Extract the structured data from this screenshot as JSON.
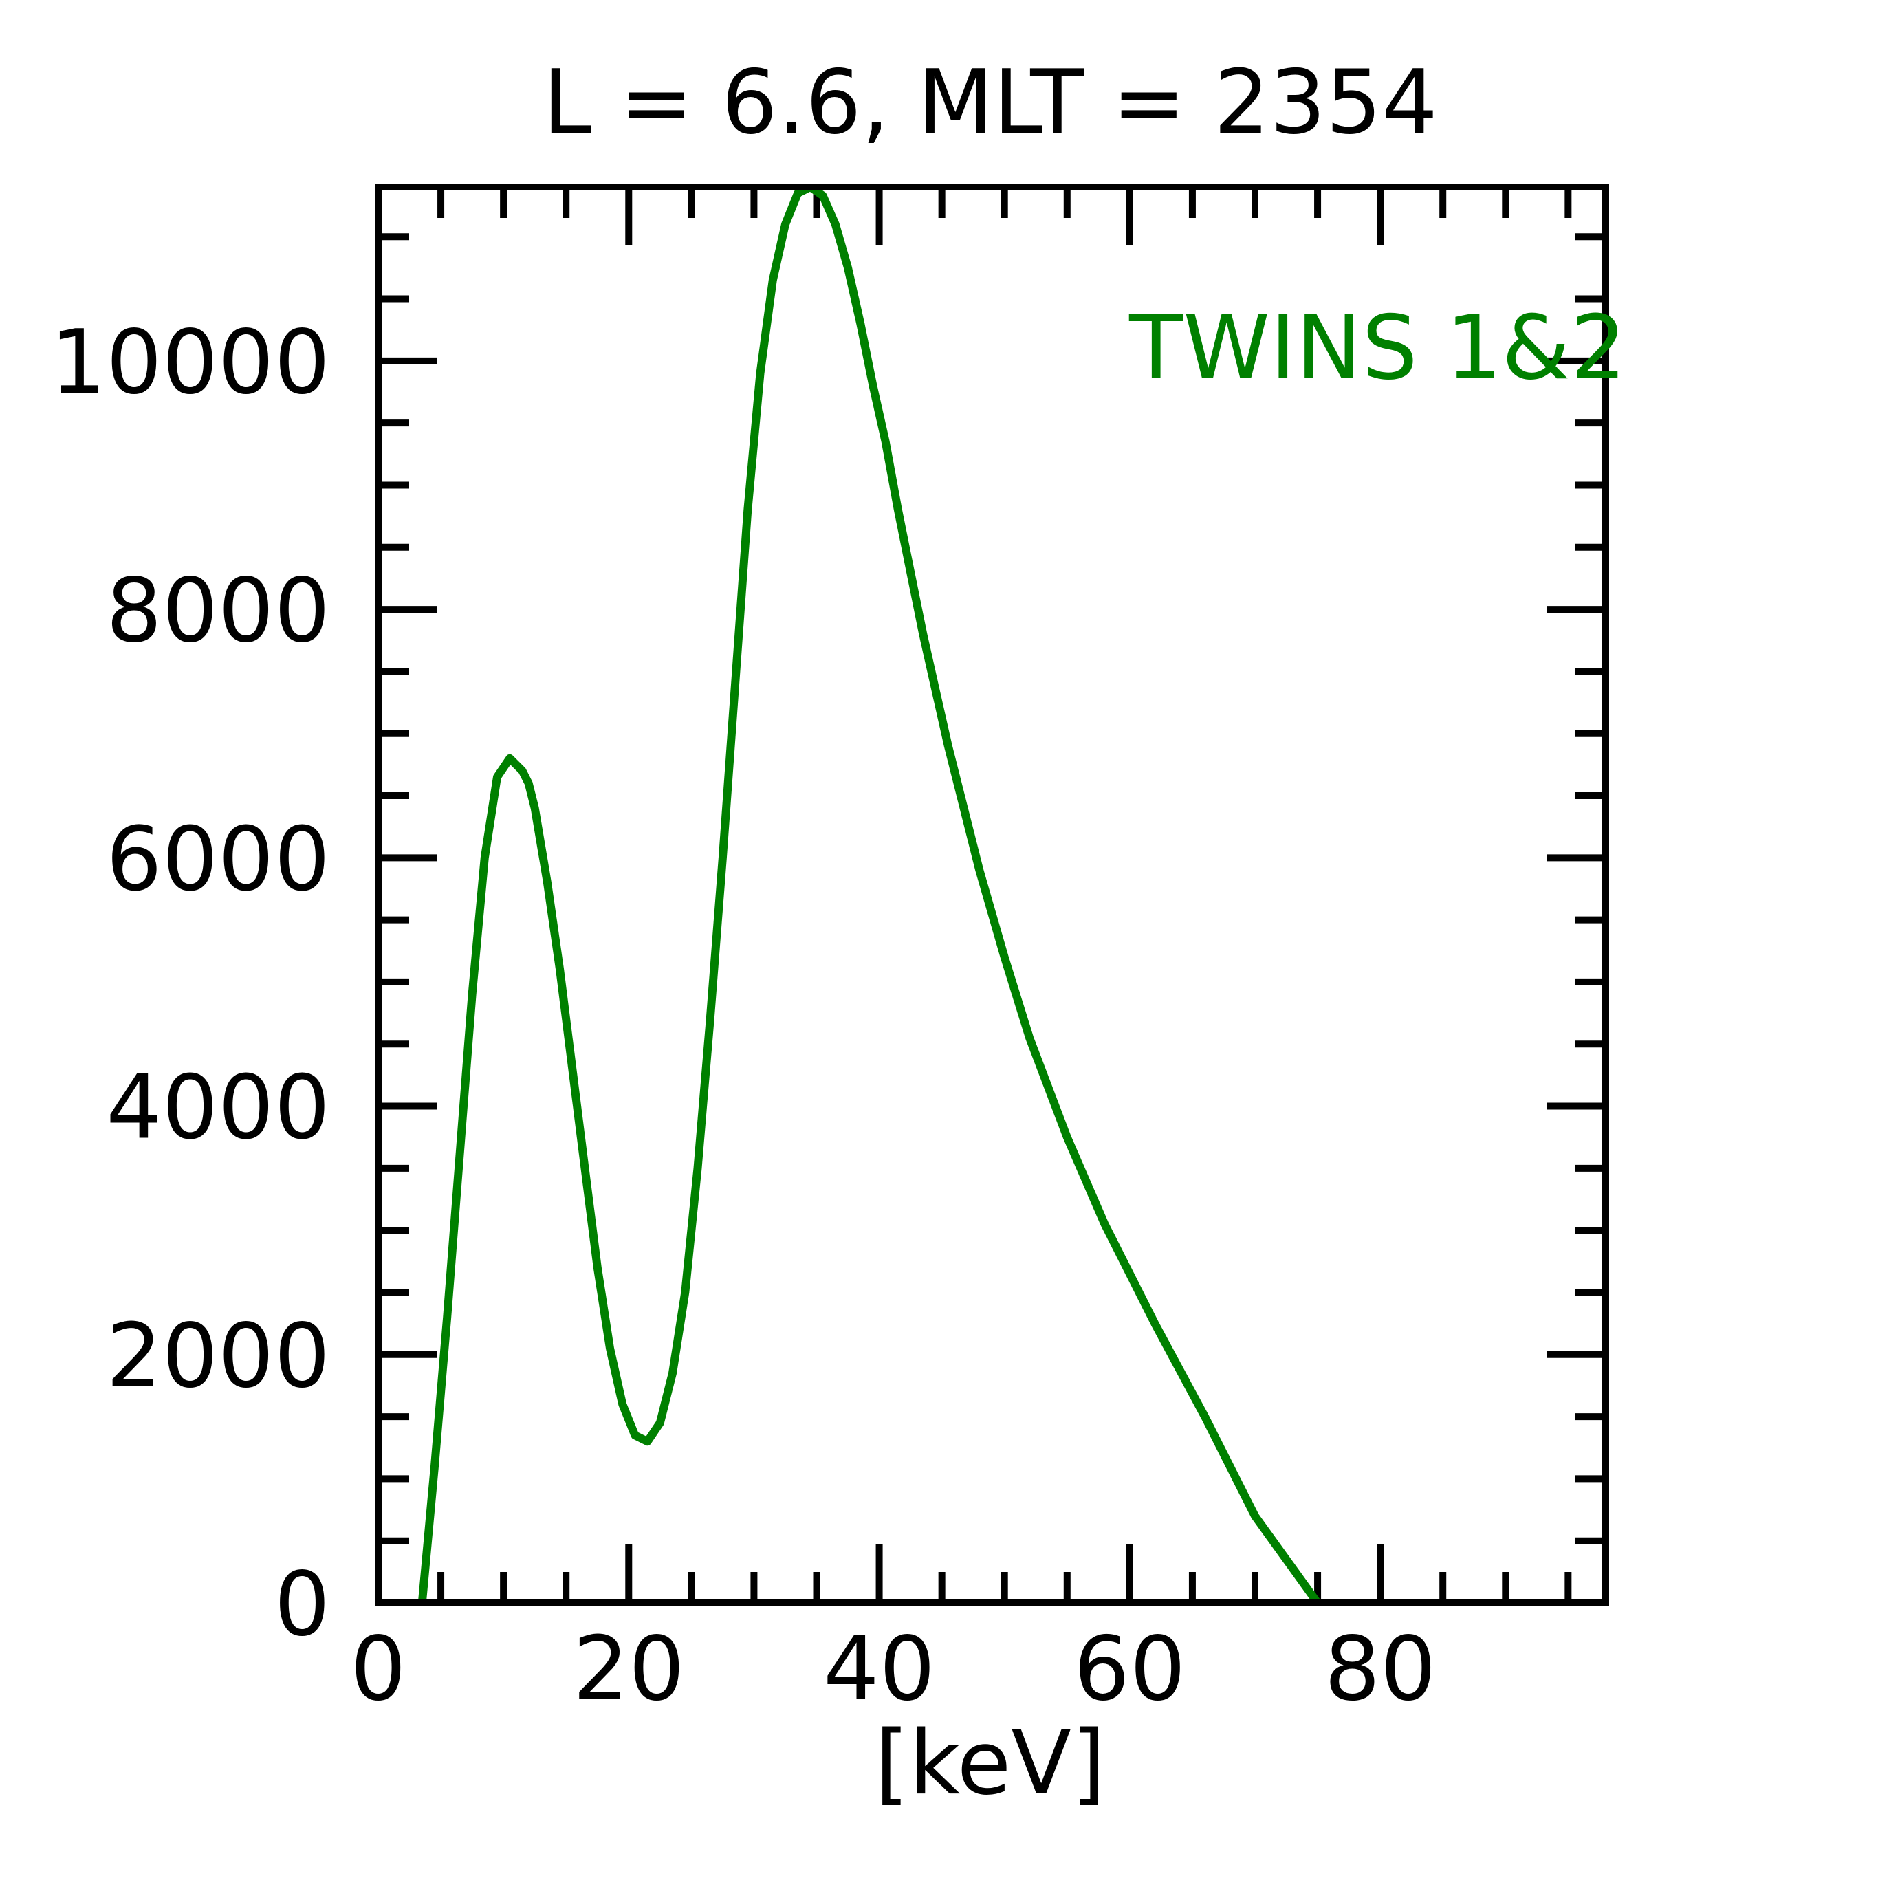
{
  "chart_data": {
    "type": "line",
    "title": "L =  6.6, MLT = 2354",
    "xlabel": "[keV]",
    "ylabel": "",
    "xlim": [
      0,
      98
    ],
    "ylim": [
      0,
      11400
    ],
    "x_ticks": [
      0,
      20,
      40,
      60,
      80
    ],
    "y_ticks": [
      0,
      2000,
      4000,
      6000,
      8000,
      10000
    ],
    "x_minor_step": 5,
    "y_minor_step": 500,
    "grid": false,
    "legend_position": "top-right",
    "series": [
      {
        "name": "TWINS 1&2",
        "color": "#008000",
        "x": [
          3.5,
          4.5,
          5.5,
          6.5,
          7.5,
          8.5,
          9.5,
          10.5,
          11.5,
          12,
          12.5,
          13.5,
          14.5,
          15.5,
          16.5,
          17.5,
          18.5,
          19.5,
          20.5,
          21.5,
          22.5,
          23.5,
          24.5,
          25.5,
          26.5,
          27.5,
          28.5,
          29.5,
          30.5,
          31.5,
          32.5,
          33.5,
          34.5,
          35.5,
          36.5,
          37.5,
          38.5,
          39.5,
          40.5,
          41.5,
          42.5,
          43.5,
          44.5,
          45.5,
          46.5,
          48,
          50,
          52,
          55,
          58,
          62,
          66,
          70,
          75,
          80,
          85,
          90,
          95,
          98
        ],
        "y": [
          0,
          1100,
          2300,
          3600,
          4900,
          6000,
          6650,
          6800,
          6700,
          6600,
          6400,
          5800,
          5100,
          4300,
          3500,
          2700,
          2050,
          1600,
          1350,
          1300,
          1450,
          1850,
          2500,
          3500,
          4700,
          6000,
          7400,
          8800,
          9900,
          10650,
          11100,
          11350,
          11400,
          11330,
          11100,
          10750,
          10300,
          9800,
          9350,
          8800,
          8300,
          7800,
          7350,
          6900,
          6500,
          5900,
          5200,
          4550,
          3750,
          3050,
          2250,
          1500,
          700,
          0,
          0,
          0,
          0,
          0,
          0
        ]
      }
    ]
  }
}
